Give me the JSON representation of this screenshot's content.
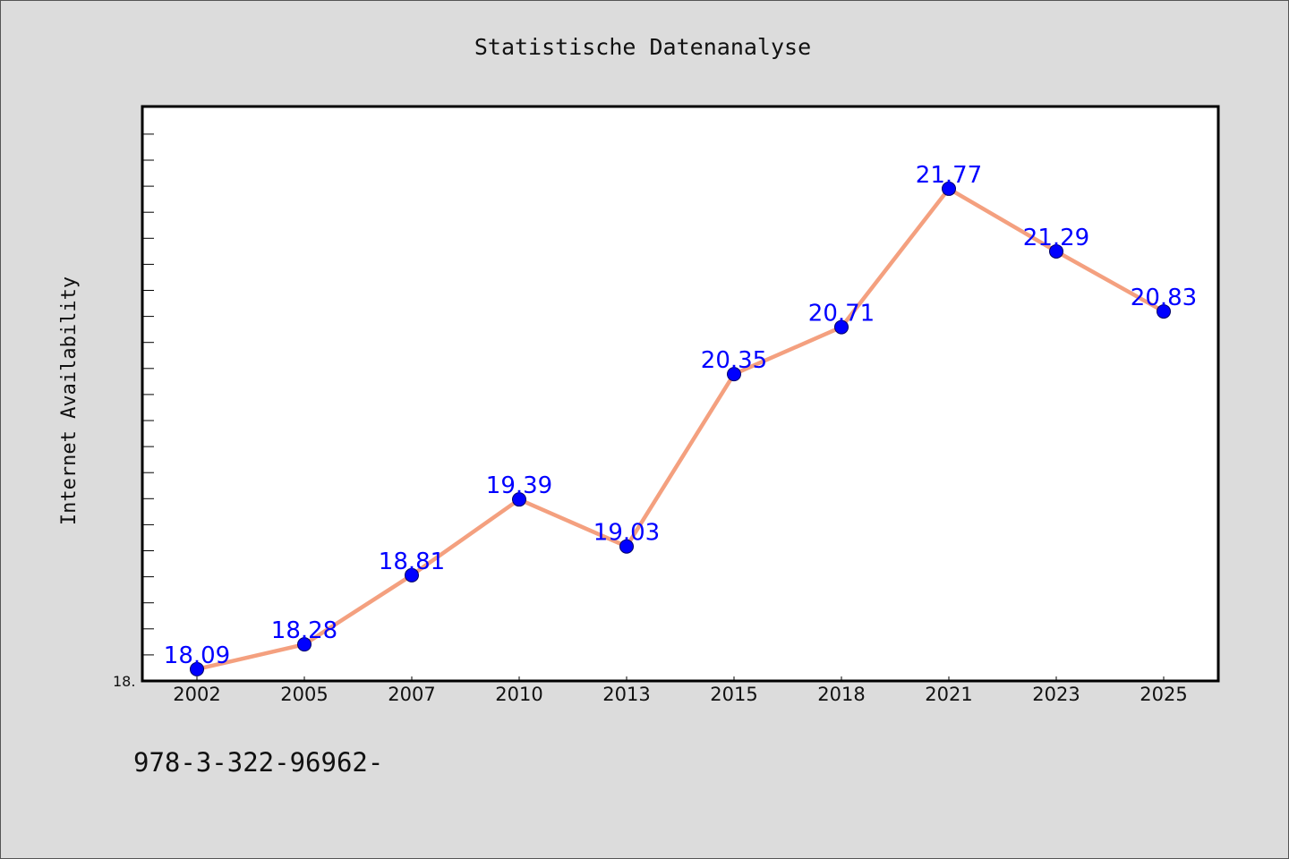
{
  "chart_data": {
    "type": "line",
    "title": "Statistische Datenanalyse",
    "xlabel": "",
    "ylabel": "Internet Availability",
    "categories": [
      "2002",
      "2005",
      "2007",
      "2010",
      "2013",
      "2015",
      "2018",
      "2021",
      "2023",
      "2025"
    ],
    "series": [
      {
        "values": [
          18.09,
          18.28,
          18.81,
          19.39,
          19.03,
          20.35,
          20.71,
          21.77,
          21.29,
          20.83
        ]
      }
    ],
    "data_labels": [
      "18.09",
      "18.28",
      "18.81",
      "19.39",
      "19.03",
      "20.35",
      "20.71",
      "21.77",
      "21.29",
      "20.83"
    ],
    "y_tick_label": "18.",
    "ylim": [
      18.0,
      22.4
    ],
    "grid": false,
    "legend": "none",
    "line_color": "#f4a07f",
    "marker_color": "#0000ff",
    "label_color": "#0000ff"
  },
  "footer_text": "978-3-322-96962-"
}
